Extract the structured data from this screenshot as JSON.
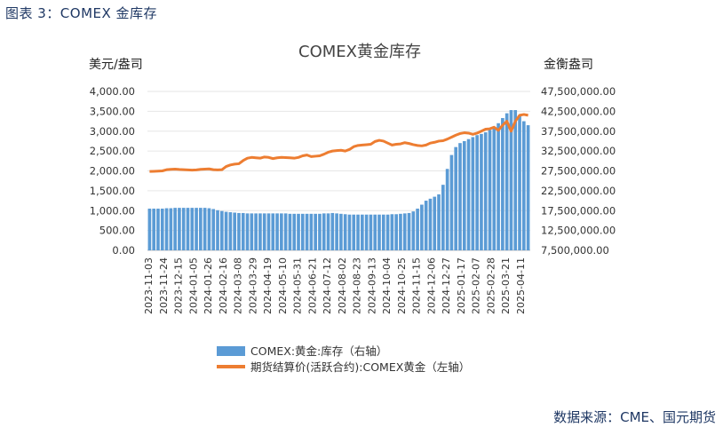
{
  "caption": "图表 3：COMEX 金库存",
  "source": "数据来源：CME、国元期货",
  "colors": {
    "bars": "#5b9bd5",
    "line": "#ed7d31",
    "caption": "#1f3864"
  },
  "chart_data": {
    "type": "bar+line",
    "title": "COMEX黄金库存",
    "ylabel_left": "美元/盎司",
    "ylabel_right": "金衡盎司",
    "ylim_left": [
      0,
      4000
    ],
    "ylim_right": [
      7500000,
      47500000
    ],
    "yticks_left": [
      "4,000.00",
      "3,500.00",
      "3,000.00",
      "2,500.00",
      "2,000.00",
      "1,500.00",
      "1,000.00",
      "500.00",
      "0.00"
    ],
    "yticks_right": [
      "47,500,000.00",
      "42,500,000.00",
      "37,500,000.00",
      "32,500,000.00",
      "27,500,000.00",
      "22,500,000.00",
      "17,500,000.00",
      "12,500,000.00",
      "7,500,000.00"
    ],
    "x_ticks": [
      "2023-11-03",
      "2023-11-24",
      "2023-12-15",
      "2024-01-05",
      "2024-01-26",
      "2024-02-16",
      "2024-03-08",
      "2024-03-29",
      "2024-04-19",
      "2024-05-10",
      "2024-05-31",
      "2024-06-21",
      "2024-07-12",
      "2024-08-02",
      "2024-08-23",
      "2024-09-13",
      "2024-10-04",
      "2024-10-25",
      "2024-11-15",
      "2024-12-06",
      "2024-12-27",
      "2025-01-17",
      "2025-02-07",
      "2025-02-28",
      "2025-03-21",
      "2025-04-11"
    ],
    "legend": [
      "COMEX:黄金:库存（右轴）",
      "期货结算价(活跃合约):COMEX黄金（左轴）"
    ],
    "inventory_right_axis": [
      18.0,
      18.0,
      18.0,
      18.0,
      18.1,
      18.1,
      18.2,
      18.2,
      18.2,
      18.2,
      18.2,
      18.2,
      18.2,
      18.2,
      18.1,
      17.9,
      17.6,
      17.4,
      17.2,
      17.1,
      17.0,
      16.9,
      16.9,
      16.8,
      16.8,
      16.8,
      16.8,
      16.8,
      16.8,
      16.8,
      16.8,
      16.8,
      16.8,
      16.7,
      16.7,
      16.7,
      16.7,
      16.7,
      16.7,
      16.7,
      16.7,
      16.8,
      16.8,
      16.9,
      16.8,
      16.7,
      16.6,
      16.5,
      16.5,
      16.5,
      16.5,
      16.5,
      16.5,
      16.5,
      16.5,
      16.5,
      16.5,
      16.6,
      16.6,
      16.7,
      16.8,
      16.9,
      17.3,
      18.0,
      19.0,
      20.0,
      20.5,
      21.0,
      21.6,
      24.0,
      28.0,
      31.5,
      33.5,
      34.5,
      35.0,
      35.5,
      36.0,
      36.5,
      36.8,
      37.2,
      37.8,
      38.5,
      39.5,
      40.8,
      42.0,
      42.8,
      42.8,
      41.5,
      40.0,
      39.0
    ],
    "price_left_axis": [
      1985,
      1990,
      1995,
      2000,
      2030,
      2040,
      2045,
      2035,
      2030,
      2025,
      2020,
      2025,
      2040,
      2045,
      2050,
      2030,
      2025,
      2030,
      2110,
      2150,
      2170,
      2180,
      2260,
      2320,
      2340,
      2330,
      2320,
      2350,
      2340,
      2310,
      2330,
      2340,
      2335,
      2330,
      2320,
      2340,
      2380,
      2400,
      2360,
      2370,
      2380,
      2420,
      2470,
      2500,
      2510,
      2520,
      2500,
      2540,
      2610,
      2640,
      2650,
      2660,
      2670,
      2740,
      2770,
      2750,
      2700,
      2650,
      2670,
      2680,
      2710,
      2690,
      2660,
      2640,
      2630,
      2650,
      2700,
      2720,
      2750,
      2760,
      2800,
      2850,
      2900,
      2940,
      2960,
      2950,
      2920,
      2950,
      3000,
      3050,
      3060,
      3100,
      3020,
      3150,
      3250,
      3000,
      3250,
      3400,
      3420,
      3400
    ]
  }
}
